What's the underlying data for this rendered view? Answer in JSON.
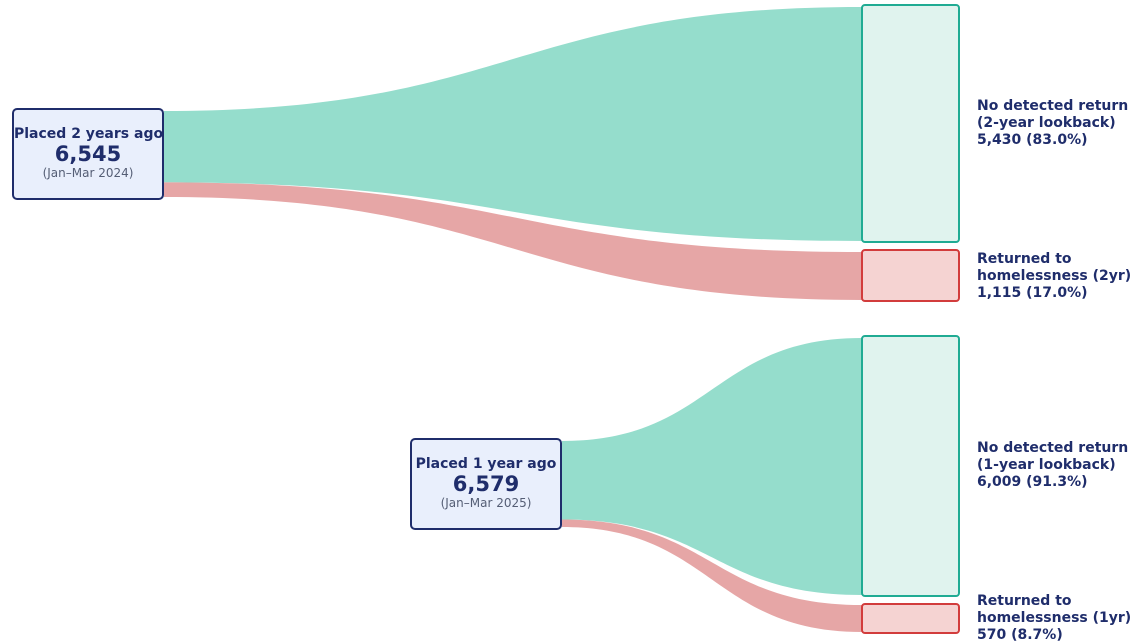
{
  "colors": {
    "success_flow": "#95ddcc",
    "success_box_fill": "#e0f3ee",
    "success_box_border": "#20ab93",
    "return_flow": "#e6a6a6",
    "return_box_fill": "#f5d3d2",
    "return_box_border": "#d23c3c",
    "source_fill": "#e9effc",
    "source_border": "#1f2d6b",
    "text": "#1f2d6b"
  },
  "cohorts": [
    {
      "source": {
        "title": "Placed 2 years ago",
        "count": "6,545",
        "period": "(Jan–Mar 2024)"
      },
      "targets": [
        {
          "line1": "No detected return",
          "line2": "(2-year lookback)",
          "line3": "5,430 (83.0%)",
          "value": 5430,
          "percent": 83.0
        },
        {
          "line1": "Returned to",
          "line2": "homelessness (2yr)",
          "line3": "1,115 (17.0%)",
          "value": 1115,
          "percent": 17.0
        }
      ]
    },
    {
      "source": {
        "title": "Placed 1 year ago",
        "count": "6,579",
        "period": "(Jan–Mar 2025)"
      },
      "targets": [
        {
          "line1": "No detected return",
          "line2": "(1-year lookback)",
          "line3": "6,009 (91.3%)",
          "value": 6009,
          "percent": 91.3
        },
        {
          "line1": "Returned to",
          "line2": "homelessness (1yr)",
          "line3": "570 (8.7%)",
          "value": 570,
          "percent": 8.7
        }
      ]
    }
  ]
}
